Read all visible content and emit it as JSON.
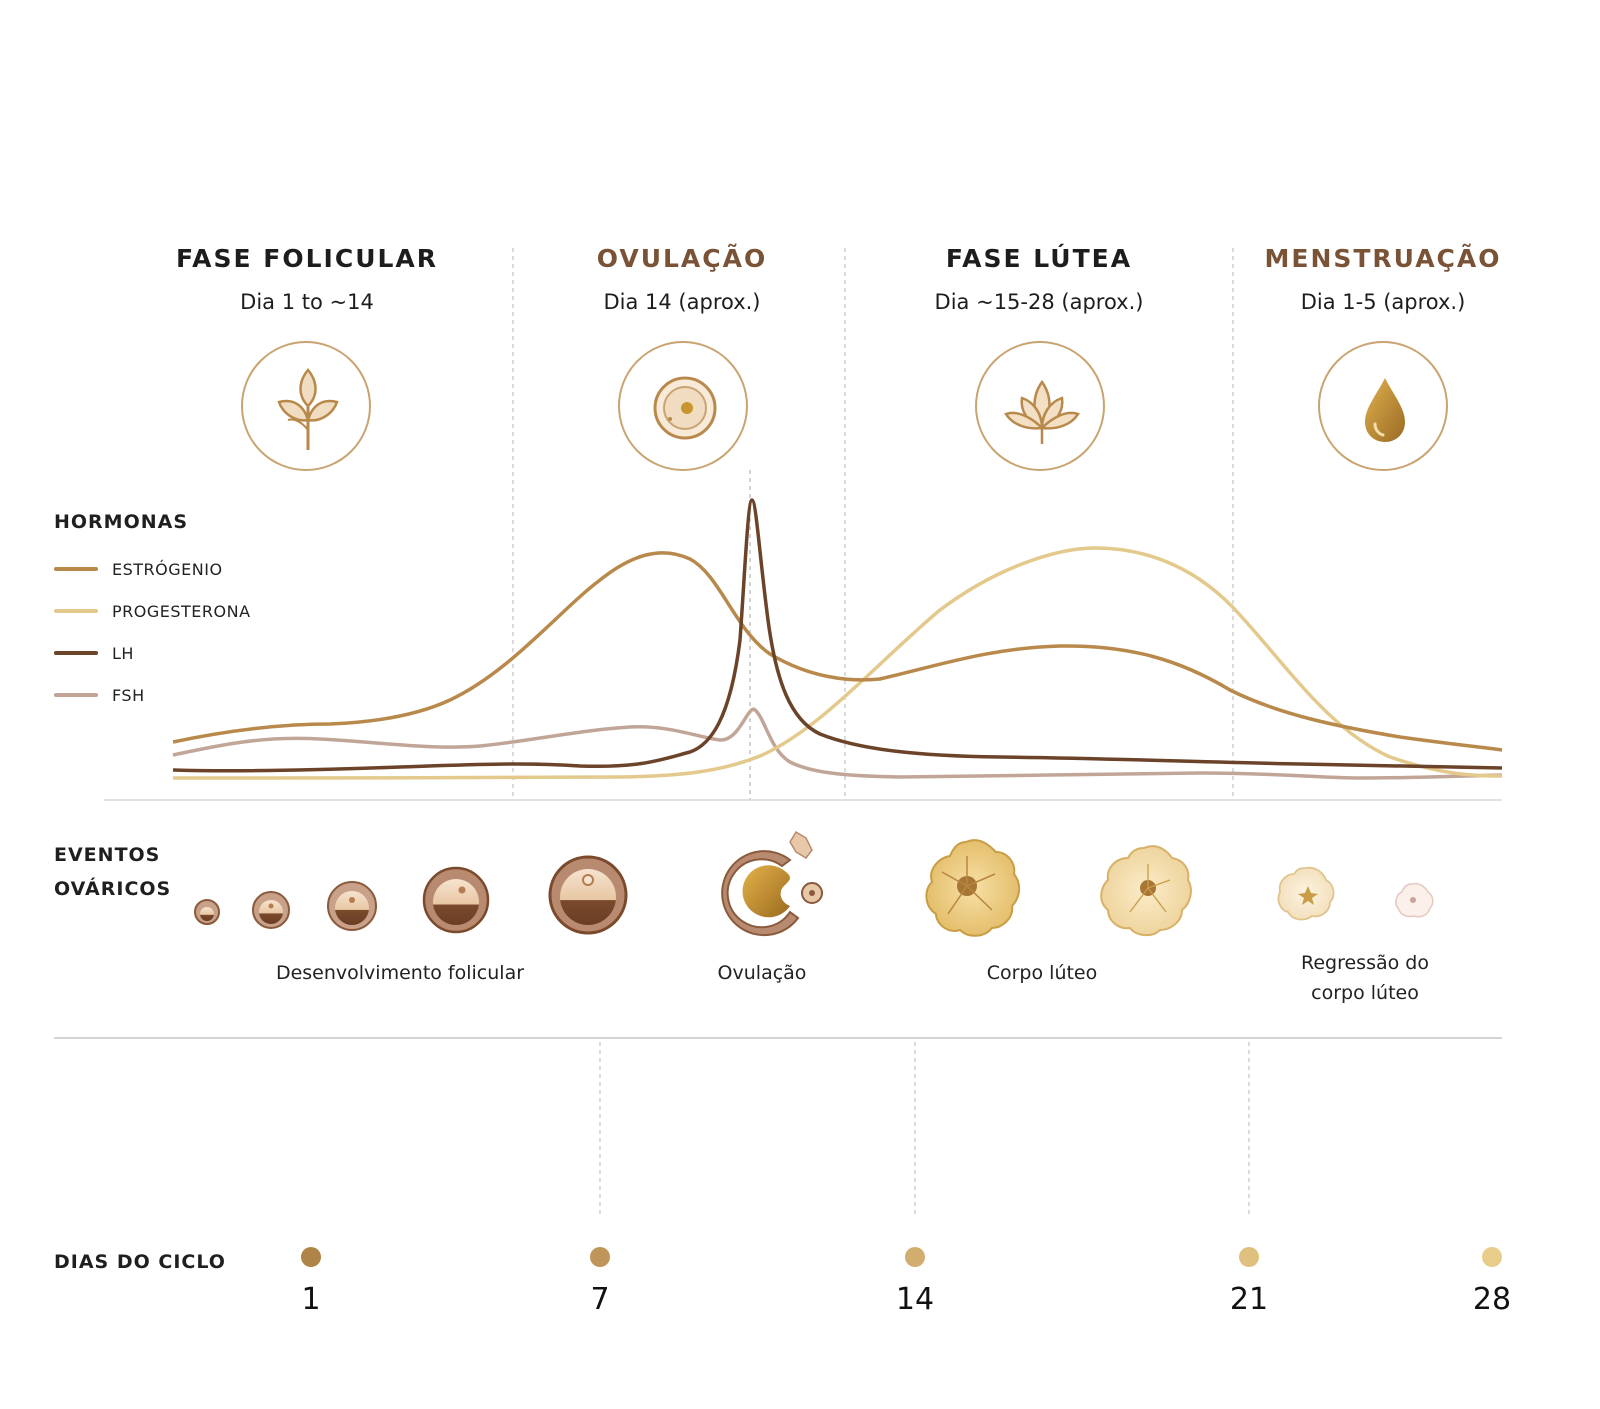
{
  "phases": [
    {
      "title": "FASE FOLICULAR",
      "subtitle": "Dia 1 to ~14",
      "title_color": "#1d1d1d",
      "icon": "leaf-sprout-icon"
    },
    {
      "title": "OVULAÇÃO",
      "subtitle": "Dia 14 (aprox.)",
      "title_color": "#7a5236",
      "icon": "egg-cell-icon"
    },
    {
      "title": "FASE LÚTEA",
      "subtitle": "Dia ~15-28 (aprox.)",
      "title_color": "#1d1d1d",
      "icon": "lotus-icon"
    },
    {
      "title": "MENSTRUAÇÃO",
      "subtitle": "Dia 1-5 (aprox.)",
      "title_color": "#7a5236",
      "icon": "drop-icon"
    }
  ],
  "hormones": {
    "label": "HORMONAS",
    "legend": [
      {
        "name": "ESTRÓGENIO",
        "color": "#b8894a"
      },
      {
        "name": "PROGESTERONA",
        "color": "#e3c98b"
      },
      {
        "name": "LH",
        "color": "#6b4329"
      },
      {
        "name": "FSH",
        "color": "#c1a597"
      }
    ]
  },
  "ovarian_events": {
    "label_line1": "EVENTOS",
    "label_line2": "OVÁRICOS",
    "stages": [
      {
        "label": "Desenvolvimento folicular"
      },
      {
        "label": "Ovulação"
      },
      {
        "label": "Corpo lúteo"
      },
      {
        "label_line1": "Regressão do",
        "label_line2": "corpo lúteo"
      }
    ]
  },
  "timeline": {
    "label": "DIAS DO CICLO",
    "ticks": [
      "1",
      "7",
      "14",
      "21",
      "28"
    ],
    "gradient_start": "#b08447",
    "gradient_end": "#e8cd8a"
  }
}
